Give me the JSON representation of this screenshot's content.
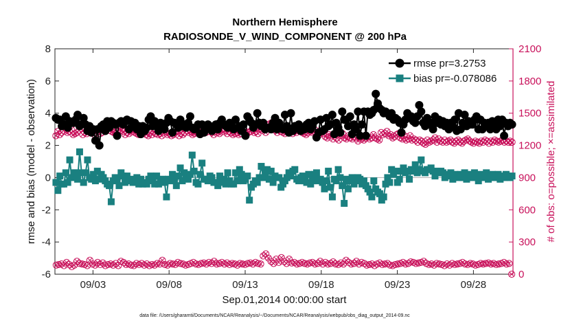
{
  "chart_data": {
    "type": "line",
    "title": "Northern Hemisphere",
    "subtitle": "RADIOSONDE_V_WIND_COMPONENT @ 200 hPa",
    "ylabel": "rmse and bias (model - observation)",
    "y2label": "# of obs: o=possible; ×=assimilated",
    "xlabel": "Sep.01,2014 00:00:00 start",
    "footnote": "data file: /Users/gharamti/Documents/NCAR/Reanalysis/~/Documents/NCAR/Reanalysis/webpub/obs_diag_output_2014-09.nc",
    "xlim": [
      0.5,
      30.6
    ],
    "ylim": [
      -6,
      8
    ],
    "y2lim": [
      0,
      2100
    ],
    "x_ticks": [
      3,
      8,
      13,
      18,
      23,
      28
    ],
    "x_tick_labels": [
      "09/03",
      "09/08",
      "09/13",
      "09/18",
      "09/23",
      "09/28"
    ],
    "y_ticks": [
      "-6",
      "-4",
      "-2",
      "0",
      "2",
      "4",
      "6",
      "8"
    ],
    "y2_ticks": [
      "0",
      "300",
      "600",
      "900",
      "1200",
      "1500",
      "1800",
      "2100"
    ],
    "legend": {
      "position": "top-right",
      "rmse_label": "rmse pr=3.2753",
      "bias_label": "bias pr=-0.078086"
    },
    "colors": {
      "rmse": "#000000",
      "bias": "#1a8080",
      "obs": "#c8105a",
      "zero_line": "#b8b8b8"
    },
    "series": [
      {
        "name": "rmse",
        "axis": "left",
        "marker": "circle",
        "values": [
          3.7,
          3.6,
          3.6,
          3.2,
          3.3,
          3.8,
          3.1,
          3.5,
          3.4,
          3.4,
          3.6,
          3.9,
          3.2,
          3.3,
          3.7,
          3.3,
          2.9,
          3.2,
          2.8,
          3.0,
          2.3,
          3.0,
          2.0,
          3.2,
          3.3,
          2.9,
          3.5,
          3.1,
          3.5,
          3.4,
          3.3,
          2.6,
          3.4,
          3.5,
          3.3,
          3.5,
          3.6,
          3.0,
          3.5,
          3.2,
          3.4,
          3.0,
          3.2,
          2.7,
          3.2,
          2.9,
          3.1,
          3.6,
          3.8,
          3.2,
          3.5,
          3.2,
          2.9,
          3.4,
          3.2,
          3.0,
          3.4,
          3.7,
          3.5,
          2.8,
          3.4,
          3.3,
          3.1,
          3.6,
          3.2,
          3.3,
          3.1,
          3.4,
          3.8,
          3.1,
          3.0,
          3.1,
          3.3,
          2.7,
          3.3,
          2.8,
          3.0,
          3.3,
          3.2,
          2.9,
          3.1,
          3.3,
          3.0,
          3.4,
          3.6,
          3.3,
          3.2,
          3.1,
          3.4,
          3.2,
          3.0,
          3.6,
          3.1,
          3.2,
          2.9,
          3.3,
          2.6,
          3.8,
          3.6,
          3.4,
          3.1,
          3.3,
          4.0,
          3.4,
          3.2,
          3.4,
          3.0,
          3.1,
          3.1,
          3.0,
          3.4,
          3.7,
          3.0,
          3.4,
          3.1,
          3.0,
          3.9,
          3.2,
          2.8,
          4.0,
          2.9,
          3.2,
          3.1,
          3.3,
          2.9,
          3.0,
          3.0,
          3.3,
          3.4,
          3.0,
          3.2,
          3.5,
          2.5,
          2.8,
          3.6,
          2.9,
          3.0,
          3.7,
          3.2,
          3.3,
          3.9,
          2.7,
          3.4,
          3.1,
          2.8,
          4.1,
          3.6,
          3.6,
          3.2,
          3.8,
          2.7,
          3.3,
          3.0,
          4.1,
          2.6,
          3.3,
          4.1,
          2.6,
          4.1,
          3.9,
          4.0,
          4.2,
          5.2,
          4.6,
          4.3,
          4.2,
          4.0,
          4.1,
          4.0,
          3.8,
          4.0,
          3.6,
          3.7,
          3.6,
          3.4,
          2.8,
          3.3,
          3.6,
          4.0,
          3.7,
          3.8,
          3.5,
          3.4,
          3.8,
          4.5,
          4.1,
          3.4,
          3.2,
          3.7,
          3.3,
          3.4,
          3.0,
          3.8,
          3.4,
          3.6,
          3.3,
          3.5,
          3.2,
          3.4,
          3.0,
          3.4,
          3.2,
          3.6,
          2.9,
          4.0,
          3.0,
          3.4,
          3.9,
          3.2,
          3.5,
          3.3,
          3.3,
          3.6,
          3.8,
          3.0,
          3.6,
          3.0,
          3.4,
          3.3,
          3.4,
          3.0,
          3.5,
          3.3,
          3.0,
          3.6,
          3.2,
          3.6,
          2.6,
          3.4,
          3.2,
          3.4,
          3.3
        ]
      },
      {
        "name": "bias",
        "axis": "left",
        "marker": "square",
        "values": [
          -0.3,
          -0.8,
          0.1,
          -0.4,
          -0.4,
          0.3,
          -0.3,
          1.1,
          0.0,
          0.3,
          0.3,
          -0.1,
          1.6,
          0.3,
          -0.3,
          0.3,
          1.1,
          0.0,
          -0.1,
          0.2,
          -0.2,
          0.4,
          -0.1,
          0.2,
          0.0,
          -0.2,
          -0.4,
          -0.5,
          -1.5,
          -0.2,
          0.0,
          -0.1,
          -0.5,
          0.3,
          0.1,
          -0.3,
          0.1,
          -0.2,
          -0.1,
          -0.3,
          -0.3,
          0.0,
          -0.4,
          -0.1,
          -0.4,
          -0.3,
          -0.4,
          -0.1,
          0.1,
          -0.2,
          -0.4,
          0.1,
          -0.4,
          -0.2,
          -0.1,
          -0.3,
          -1.2,
          -0.1,
          -0.2,
          0.2,
          -0.1,
          -0.5,
          0.1,
          0.6,
          -0.2,
          0.3,
          0.0,
          -0.1,
          0.2,
          1.4,
          0.4,
          -0.3,
          -0.4,
          0.2,
          0.9,
          -0.1,
          -0.1,
          -0.2,
          0.1,
          0.0,
          -0.3,
          -0.3,
          -0.5,
          0.1,
          -0.3,
          -0.1,
          -0.4,
          0.3,
          -0.2,
          -0.4,
          -0.4,
          0.3,
          -0.2,
          0.5,
          0.2,
          -0.2,
          -0.1,
          0.1,
          -1.4,
          -0.6,
          -0.4,
          -0.2,
          -0.3,
          0.0,
          0.7,
          0.0,
          0.3,
          0.5,
          -0.1,
          0.4,
          -0.3,
          0.1,
          0.0,
          0.0,
          -0.6,
          -0.4,
          -0.2,
          0.0,
          0.3,
          0.1,
          0.4,
          0.5,
          -0.1,
          -0.2,
          0.0,
          0.1,
          -0.2,
          -0.3,
          0.2,
          -0.4,
          -0.2,
          0.2,
          0.3,
          -0.2,
          -0.1,
          -0.3,
          -0.7,
          -0.2,
          0.4,
          -0.6,
          -1.2,
          -0.1,
          -0.2,
          0.5,
          0.0,
          -0.5,
          -1.6,
          -0.1,
          -0.7,
          -0.2,
          0.0,
          -0.4,
          -0.2,
          0.0,
          -0.1,
          -0.4,
          -0.2,
          -0.5,
          -0.7,
          -0.9,
          -1.2,
          -0.2,
          -0.7,
          -0.9,
          -1.0,
          -1.4,
          -1.2,
          -0.4,
          0.0,
          -0.3,
          0.5,
          0.2,
          0.4,
          -0.3,
          -0.1,
          0.4,
          0.6,
          0.3,
          0.4,
          -0.1,
          0.5,
          0.4,
          0.8,
          0.3,
          0.5,
          1.1,
          0.4,
          0.3,
          0.5,
          0.5,
          0.6,
          0.4,
          0.1,
          0.4,
          0.3,
          0.4,
          0.3,
          0.0,
          0.2,
          0.1,
          0.3,
          -0.1,
          0.2,
          0.1,
          0.0,
          0.2,
          0.0,
          0.3,
          -0.1,
          0.1,
          0.2,
          0.0,
          0.3,
          0.1,
          -0.2,
          0.2,
          0.1,
          0.0,
          0.3,
          -0.1,
          0.1,
          0.2,
          0.0,
          0.1,
          0.2,
          -0.1,
          0.1,
          0.0,
          0.2,
          0.1,
          0.0,
          0.1
        ]
      },
      {
        "name": "obs_possible",
        "axis": "right",
        "marker": "circle-open",
        "values": [
          1290,
          1330,
          1300,
          1320,
          1340,
          1360,
          1320,
          1330,
          1350,
          1300,
          1310,
          1320,
          1340,
          1360,
          1300,
          1320,
          1310,
          1340,
          1350,
          1330,
          1300,
          1340,
          1330,
          1310,
          1320,
          1350,
          1360,
          1380,
          1340,
          1330,
          1320,
          1310,
          1360,
          1350,
          1340,
          1330,
          1300,
          1320,
          1310,
          1340,
          1330,
          1320,
          1310,
          1300,
          1310,
          1320,
          1330,
          1300,
          1290,
          1320,
          1300,
          1330,
          1310,
          1300,
          1310,
          1290,
          1320,
          1330,
          1300,
          1310,
          1290,
          1300,
          1320,
          1330,
          1290,
          1310,
          1300,
          1320,
          1340,
          1320,
          1330,
          1300,
          1310,
          1320,
          1330,
          1300,
          1310,
          1340,
          1320,
          1350,
          1360,
          1320,
          1300,
          1330,
          1320,
          1310,
          1350,
          1330,
          1340,
          1310,
          1330,
          1320,
          1300,
          1310,
          1320,
          1300,
          1310,
          1330,
          1340,
          1310,
          1320,
          1330,
          1350,
          1320,
          1330,
          1310,
          1350,
          1340,
          1380,
          1320,
          1360,
          1400,
          1410,
          1380,
          1340,
          1320,
          1350,
          1330,
          1320,
          1310,
          1330,
          1340,
          1320,
          1310,
          1330,
          1320,
          1340,
          1330,
          1320,
          1310,
          1300,
          1320,
          1330,
          1320,
          1330,
          1340,
          1320,
          1300,
          1320,
          1310,
          1280,
          1270,
          1300,
          1290,
          1260,
          1300,
          1270,
          1250,
          1290,
          1310,
          1270,
          1260,
          1290,
          1270,
          1260,
          1280,
          1270,
          1240,
          1270,
          1260,
          1250,
          1270,
          1280,
          1260,
          1270,
          1300,
          1270,
          1260,
          1250,
          1320,
          1300,
          1310,
          1330,
          1290,
          1300,
          1270,
          1280,
          1300,
          1310,
          1270,
          1260,
          1290,
          1250,
          1260,
          1290,
          1250,
          1260,
          1250,
          1230,
          1250,
          1240,
          1220,
          1210,
          1250,
          1230,
          1240,
          1250,
          1270,
          1230,
          1260,
          1240,
          1230,
          1250,
          1230,
          1240,
          1250,
          1230,
          1220,
          1240,
          1250,
          1230,
          1220,
          1240,
          1250,
          1260,
          1240,
          1230,
          1220,
          1240,
          1230,
          1220,
          1240,
          1230,
          1250,
          1240,
          1220,
          1240,
          1230,
          1250,
          1240,
          1230,
          1240,
          1250,
          1230,
          1240,
          1230,
          1240,
          1230
        ]
      },
      {
        "name": "obs_assimilated",
        "axis": "right",
        "marker": "x",
        "values": [
          1290,
          1330,
          1300,
          1320,
          1340,
          1360,
          1320,
          1330,
          1350,
          1300,
          1310,
          1320,
          1340,
          1360,
          1300,
          1320,
          1310,
          1340,
          1350,
          1330,
          1300,
          1340,
          1330,
          1310,
          1320,
          1350,
          1360,
          1380,
          1340,
          1330,
          1320,
          1310,
          1360,
          1350,
          1340,
          1330,
          1300,
          1320,
          1310,
          1340,
          1330,
          1320,
          1310,
          1300,
          1310,
          1320,
          1330,
          1300,
          1290,
          1320,
          1300,
          1330,
          1310,
          1300,
          1310,
          1290,
          1320,
          1330,
          1300,
          1310,
          1290,
          1300,
          1320,
          1330,
          1290,
          1310,
          1300,
          1320,
          1340,
          1320,
          1330,
          1300,
          1310,
          1320,
          1330,
          1300,
          1310,
          1340,
          1320,
          1350,
          1360,
          1320,
          1300,
          1330,
          1320,
          1310,
          1350,
          1330,
          1340,
          1310,
          1330,
          1320,
          1300,
          1310,
          1320,
          1300,
          1310,
          1330,
          1340,
          1310,
          1320,
          1330,
          1350,
          1320,
          1330,
          1310,
          1350,
          1340,
          1380,
          1320,
          1360,
          1400,
          1410,
          1380,
          1340,
          1320,
          1350,
          1330,
          1320,
          1310,
          1330,
          1340,
          1320,
          1310,
          1330,
          1320,
          1340,
          1330,
          1320,
          1310,
          1300,
          1320,
          1330,
          1320,
          1330,
          1340,
          1320,
          1300,
          1320,
          1310,
          1280,
          1270,
          1300,
          1290,
          1260,
          1300,
          1270,
          1250,
          1290,
          1310,
          1270,
          1260,
          1290,
          1270,
          1260,
          1280,
          1270,
          1240,
          1270,
          1260,
          1250,
          1270,
          1280,
          1260,
          1270,
          1300,
          1270,
          1260,
          1250,
          1320,
          1300,
          1310,
          1330,
          1290,
          1300,
          1270,
          1280,
          1300,
          1310,
          1270,
          1260,
          1290,
          1250,
          1260,
          1290,
          1250,
          1260,
          1250,
          1230,
          1250,
          1240,
          1220,
          1210,
          1250,
          1230,
          1240,
          1250,
          1270,
          1230,
          1260,
          1240,
          1230,
          1250,
          1230,
          1240,
          1250,
          1230,
          1220,
          1240,
          1250,
          1230,
          1220,
          1240,
          1250,
          1260,
          1240,
          1230,
          1220,
          1240,
          1230,
          1220,
          1240,
          1230,
          1250,
          1240,
          1220,
          1240,
          1230,
          1250,
          1240,
          1230,
          1240,
          1250,
          1230,
          1240,
          1230,
          1240,
          1230
        ]
      },
      {
        "name": "obs_count_lower",
        "axis": "right",
        "marker": "circle-x",
        "values": [
          85,
          90,
          95,
          80,
          110,
          90,
          70,
          85,
          120,
          100,
          95,
          90,
          80,
          130,
          95,
          85,
          110,
          90,
          105,
          80,
          90,
          95,
          85,
          100,
          80,
          120,
          110,
          90,
          95,
          85,
          80,
          100,
          90,
          100,
          85,
          95,
          80,
          90,
          85,
          100,
          95,
          130,
          90,
          85,
          100,
          95,
          90,
          110,
          100,
          95,
          85,
          90,
          100,
          110,
          95,
          90,
          100,
          105,
          95,
          110,
          100,
          120,
          95,
          100,
          110,
          95,
          105,
          90,
          100,
          95,
          85,
          100,
          95,
          90,
          100,
          105,
          95,
          110,
          100,
          95,
          170,
          190,
          150,
          120,
          100,
          140,
          110,
          155,
          120,
          100,
          140,
          105,
          110,
          95,
          100,
          110,
          100,
          95,
          105,
          110,
          95,
          100,
          120,
          95,
          110,
          95,
          100,
          115,
          95,
          90,
          105,
          95,
          130,
          110,
          95,
          100,
          120,
          95,
          110,
          100,
          85,
          90,
          95,
          80,
          95,
          105,
          90,
          95,
          100,
          85,
          80,
          90,
          95,
          100,
          110,
          95,
          100,
          115,
          110,
          100,
          105,
          110,
          120,
          100,
          90,
          95,
          85,
          100,
          95,
          90,
          80,
          95,
          85,
          100,
          90,
          95,
          100,
          110,
          95,
          90,
          100,
          95,
          85,
          90,
          100,
          95,
          100,
          105,
          95,
          100,
          90,
          95,
          100,
          110,
          95,
          100,
          0
        ]
      }
    ]
  }
}
